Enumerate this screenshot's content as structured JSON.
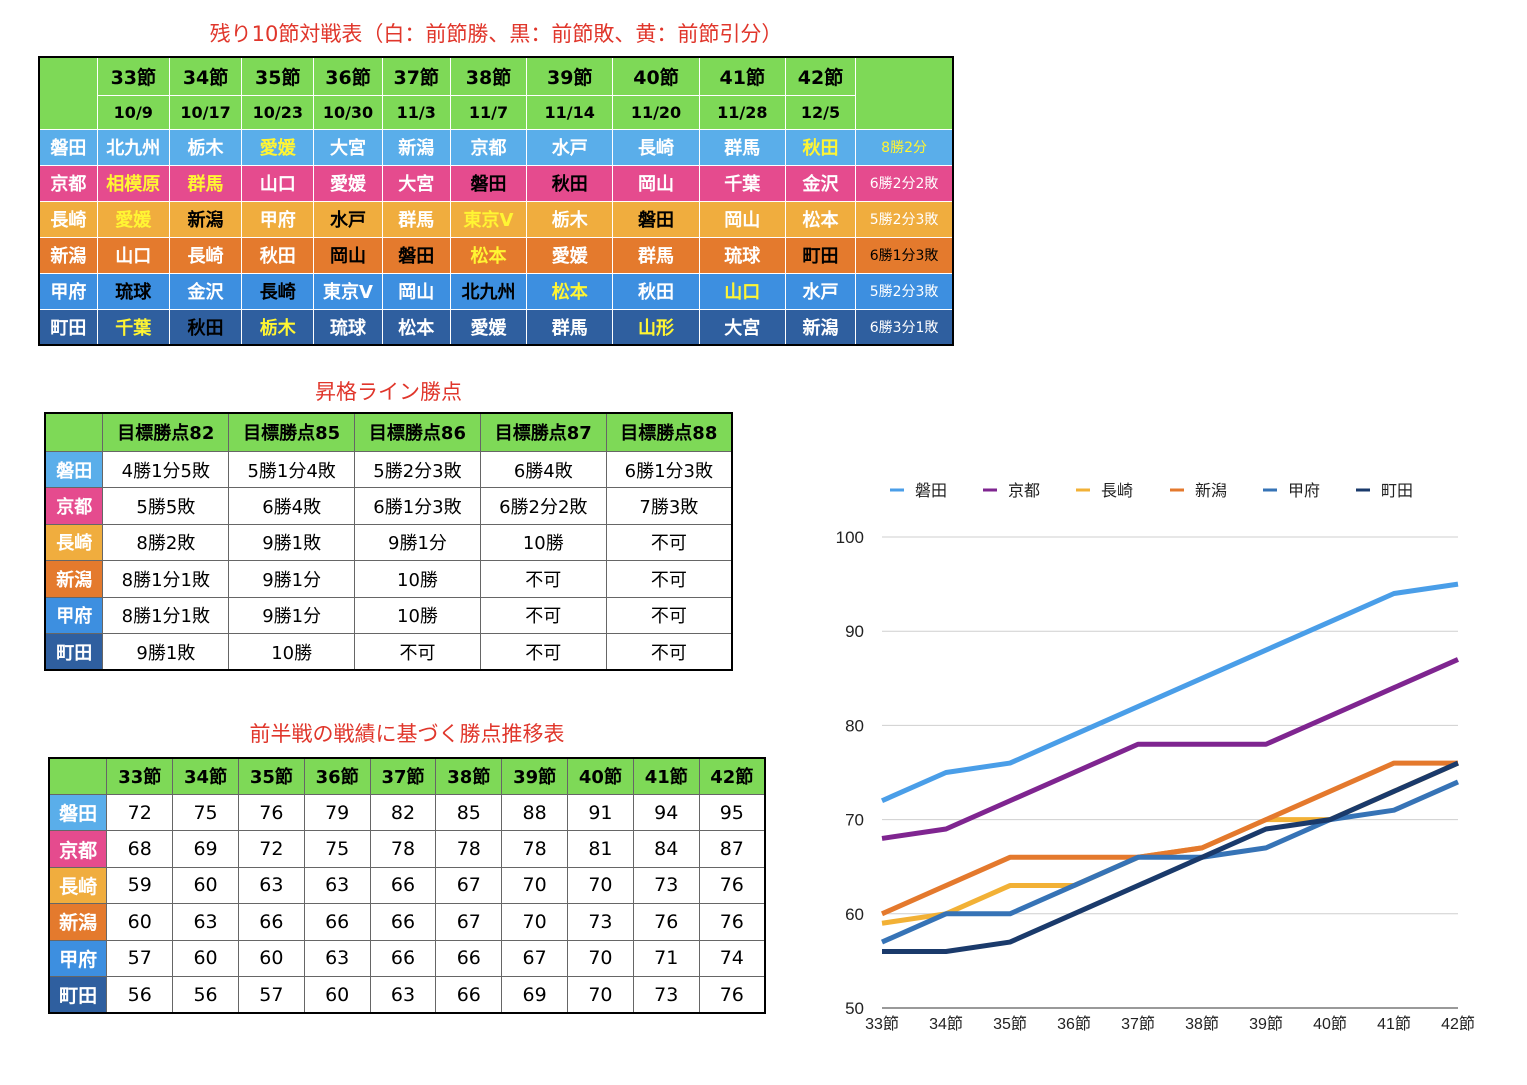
{
  "titles": {
    "schedule": "残り10節対戦表（白：前節勝、黒：前節敗、黄：前節引分）",
    "promotion": "昇格ライン勝点",
    "projection": "前半戦の戦績に基づく勝点推移表"
  },
  "team_colors": [
    "#5aaeea",
    "#e54b8e",
    "#f0ad3e",
    "#e47a2d",
    "#3d8fe0",
    "#2f5f9f"
  ],
  "schedule": {
    "rounds": [
      "33節",
      "34節",
      "35節",
      "36節",
      "37節",
      "38節",
      "39節",
      "40節",
      "41節",
      "42節"
    ],
    "dates": [
      "10/9",
      "10/17",
      "10/23",
      "10/30",
      "11/3",
      "11/7",
      "11/14",
      "11/20",
      "11/28",
      "12/5"
    ],
    "rows": [
      {
        "team": "磐田",
        "opponents": [
          [
            "北九州",
            "w"
          ],
          [
            "栃木",
            "w"
          ],
          [
            "愛媛",
            "y"
          ],
          [
            "大宮",
            "w"
          ],
          [
            "新潟",
            "w"
          ],
          [
            "京都",
            "w"
          ],
          [
            "水戸",
            "w"
          ],
          [
            "長崎",
            "w"
          ],
          [
            "群馬",
            "w"
          ],
          [
            "秋田",
            "y"
          ]
        ],
        "record": "8勝2分",
        "record_style": "y"
      },
      {
        "team": "京都",
        "opponents": [
          [
            "相模原",
            "y"
          ],
          [
            "群馬",
            "y"
          ],
          [
            "山口",
            "w"
          ],
          [
            "愛媛",
            "w"
          ],
          [
            "大宮",
            "w"
          ],
          [
            "磐田",
            "k"
          ],
          [
            "秋田",
            "k"
          ],
          [
            "岡山",
            "w"
          ],
          [
            "千葉",
            "w"
          ],
          [
            "金沢",
            "w"
          ]
        ],
        "record": "6勝2分2敗",
        "record_style": "w"
      },
      {
        "team": "長崎",
        "opponents": [
          [
            "愛媛",
            "y"
          ],
          [
            "新潟",
            "k"
          ],
          [
            "甲府",
            "w"
          ],
          [
            "水戸",
            "k"
          ],
          [
            "群馬",
            "w"
          ],
          [
            "東京V",
            "y"
          ],
          [
            "栃木",
            "w"
          ],
          [
            "磐田",
            "k"
          ],
          [
            "岡山",
            "w"
          ],
          [
            "松本",
            "w"
          ]
        ],
        "record": "5勝2分3敗",
        "record_style": "w"
      },
      {
        "team": "新潟",
        "opponents": [
          [
            "山口",
            "w"
          ],
          [
            "長崎",
            "w"
          ],
          [
            "秋田",
            "w"
          ],
          [
            "岡山",
            "k"
          ],
          [
            "磐田",
            "k"
          ],
          [
            "松本",
            "y"
          ],
          [
            "愛媛",
            "w"
          ],
          [
            "群馬",
            "w"
          ],
          [
            "琉球",
            "w"
          ],
          [
            "町田",
            "k"
          ]
        ],
        "record": "6勝1分3敗",
        "record_style": "k"
      },
      {
        "team": "甲府",
        "opponents": [
          [
            "琉球",
            "k"
          ],
          [
            "金沢",
            "w"
          ],
          [
            "長崎",
            "k"
          ],
          [
            "東京V",
            "w"
          ],
          [
            "岡山",
            "w"
          ],
          [
            "北九州",
            "k"
          ],
          [
            "松本",
            "y"
          ],
          [
            "秋田",
            "w"
          ],
          [
            "山口",
            "y"
          ],
          [
            "水戸",
            "w"
          ]
        ],
        "record": "5勝2分3敗",
        "record_style": "w"
      },
      {
        "team": "町田",
        "opponents": [
          [
            "千葉",
            "y"
          ],
          [
            "秋田",
            "k"
          ],
          [
            "栃木",
            "y"
          ],
          [
            "琉球",
            "w"
          ],
          [
            "松本",
            "w"
          ],
          [
            "愛媛",
            "w"
          ],
          [
            "群馬",
            "w"
          ],
          [
            "山形",
            "y"
          ],
          [
            "大宮",
            "w"
          ],
          [
            "新潟",
            "w"
          ]
        ],
        "record": "6勝3分1敗",
        "record_style": "w"
      }
    ]
  },
  "promotion": {
    "headers": [
      "目標勝点82",
      "目標勝点85",
      "目標勝点86",
      "目標勝点87",
      "目標勝点88"
    ],
    "rows": [
      {
        "team": "磐田",
        "cells": [
          "4勝1分5敗",
          "5勝1分4敗",
          "5勝2分3敗",
          "6勝4敗",
          "6勝1分3敗"
        ]
      },
      {
        "team": "京都",
        "cells": [
          "5勝5敗",
          "6勝4敗",
          "6勝1分3敗",
          "6勝2分2敗",
          "7勝3敗"
        ]
      },
      {
        "team": "長崎",
        "cells": [
          "8勝2敗",
          "9勝1敗",
          "9勝1分",
          "10勝",
          "不可"
        ]
      },
      {
        "team": "新潟",
        "cells": [
          "8勝1分1敗",
          "9勝1分",
          "10勝",
          "不可",
          "不可"
        ]
      },
      {
        "team": "甲府",
        "cells": [
          "8勝1分1敗",
          "9勝1分",
          "10勝",
          "不可",
          "不可"
        ]
      },
      {
        "team": "町田",
        "cells": [
          "9勝1敗",
          "10勝",
          "不可",
          "不可",
          "不可"
        ]
      }
    ]
  },
  "projection": {
    "rounds": [
      "33節",
      "34節",
      "35節",
      "36節",
      "37節",
      "38節",
      "39節",
      "40節",
      "41節",
      "42節"
    ],
    "rows": [
      {
        "team": "磐田",
        "values": [
          72,
          75,
          76,
          79,
          82,
          85,
          88,
          91,
          94,
          95
        ]
      },
      {
        "team": "京都",
        "values": [
          68,
          69,
          72,
          75,
          78,
          78,
          78,
          81,
          84,
          87
        ]
      },
      {
        "team": "長崎",
        "values": [
          59,
          60,
          63,
          63,
          66,
          67,
          70,
          70,
          73,
          76
        ]
      },
      {
        "team": "新潟",
        "values": [
          60,
          63,
          66,
          66,
          66,
          67,
          70,
          73,
          76,
          76
        ]
      },
      {
        "team": "甲府",
        "values": [
          57,
          60,
          60,
          63,
          66,
          66,
          67,
          70,
          71,
          74
        ]
      },
      {
        "team": "町田",
        "values": [
          56,
          56,
          57,
          60,
          63,
          66,
          69,
          70,
          73,
          76
        ]
      }
    ]
  },
  "chart_data": {
    "type": "line",
    "categories": [
      "33節",
      "34節",
      "35節",
      "36節",
      "37節",
      "38節",
      "39節",
      "40節",
      "41節",
      "42節"
    ],
    "series": [
      {
        "name": "磐田",
        "color": "#4a9ee8",
        "values": [
          72,
          75,
          76,
          79,
          82,
          85,
          88,
          91,
          94,
          95
        ]
      },
      {
        "name": "京都",
        "color": "#7f2590",
        "values": [
          68,
          69,
          72,
          75,
          78,
          78,
          78,
          81,
          84,
          87
        ]
      },
      {
        "name": "長崎",
        "color": "#f2b136",
        "values": [
          59,
          60,
          63,
          63,
          66,
          67,
          70,
          70,
          73,
          76
        ]
      },
      {
        "name": "新潟",
        "color": "#e4792d",
        "values": [
          60,
          63,
          66,
          66,
          66,
          67,
          70,
          73,
          76,
          76
        ]
      },
      {
        "name": "甲府",
        "color": "#3673b6",
        "values": [
          57,
          60,
          60,
          63,
          66,
          66,
          67,
          70,
          71,
          74
        ]
      },
      {
        "name": "町田",
        "color": "#1a3a6b",
        "values": [
          56,
          56,
          57,
          60,
          63,
          66,
          69,
          70,
          73,
          76
        ]
      }
    ],
    "y_ticks": [
      50,
      60,
      70,
      80,
      90,
      100
    ],
    "ylim": [
      50,
      100
    ],
    "grid": true,
    "legend": "top"
  }
}
